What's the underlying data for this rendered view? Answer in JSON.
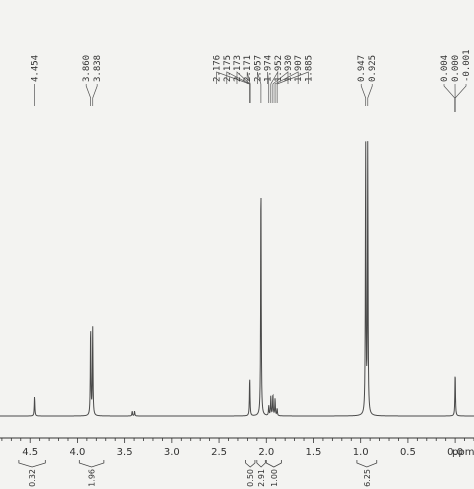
{
  "chart_data": {
    "type": "line",
    "x_unit": "ppm",
    "xlim": [
      4.82,
      -0.2
    ],
    "x_ticks": [
      "4.5",
      "4.0",
      "3.5",
      "3.0",
      "2.5",
      "2.0",
      "1.5",
      "1.0",
      "0.5",
      "0.0"
    ],
    "peak_labels": [
      {
        "group": [
          "4.454"
        ]
      },
      {
        "group": [
          "3.860",
          "3.838"
        ]
      },
      {
        "group": [
          "2.176",
          "2.175",
          "2.173",
          "2.171",
          "2.057",
          "1.974",
          "1.952",
          "1.930",
          "1.907",
          "1.885"
        ]
      },
      {
        "group": [
          "0.947",
          "0.925"
        ]
      },
      {
        "group": [
          "0.004",
          "0.000",
          "-0.001"
        ]
      }
    ],
    "integrals": [
      {
        "value": "0.32",
        "from": 4.62,
        "to": 4.34
      },
      {
        "value": "1.96",
        "from": 3.98,
        "to": 3.72
      },
      {
        "value": "0.50",
        "from": 2.22,
        "to": 2.12
      },
      {
        "value": "2.91",
        "from": 2.1,
        "to": 2.01
      },
      {
        "value": "1.00",
        "from": 2.0,
        "to": 1.84
      },
      {
        "value": "6.25",
        "from": 1.04,
        "to": 0.83
      }
    ],
    "peaks": [
      {
        "x": 4.454,
        "h": 0.08
      },
      {
        "x": 3.86,
        "h": 0.37
      },
      {
        "x": 3.838,
        "h": 0.36
      },
      {
        "x": 3.42,
        "h": 0.02
      },
      {
        "x": 3.395,
        "h": 0.02
      },
      {
        "x": 2.176,
        "h": 0.16
      },
      {
        "x": 2.057,
        "h": 0.99
      },
      {
        "x": 1.974,
        "h": 0.04
      },
      {
        "x": 1.952,
        "h": 0.08
      },
      {
        "x": 1.93,
        "h": 0.09
      },
      {
        "x": 1.907,
        "h": 0.07
      },
      {
        "x": 1.885,
        "h": 0.03
      },
      {
        "x": 0.947,
        "h": 1.12
      },
      {
        "x": 0.925,
        "h": 1.1
      },
      {
        "x": 0.0,
        "h": 0.18
      }
    ]
  }
}
